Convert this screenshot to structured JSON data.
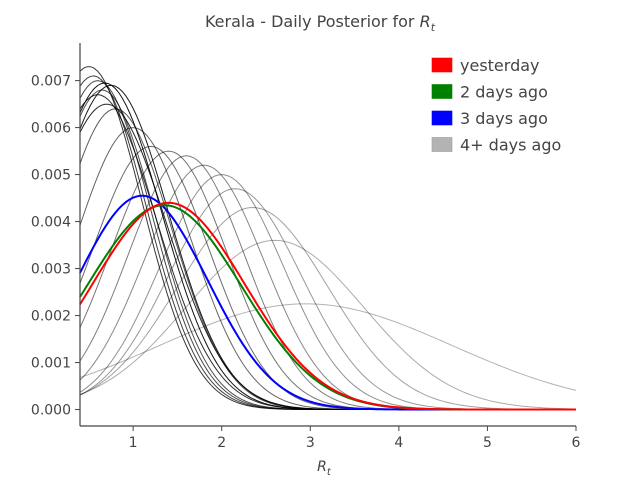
{
  "chart_data": {
    "type": "line",
    "title_text": "Kerala - Daily Posterior for ",
    "title_math": "R",
    "title_math_sub": "t",
    "xlabel_math": "R",
    "xlabel_math_sub": "t",
    "ylabel": "",
    "xlim": [
      0.4,
      6.0
    ],
    "ylim": [
      -0.00035,
      0.0078
    ],
    "grid": false,
    "legend_position": "top-right",
    "x_ticks": [
      1,
      2,
      3,
      4,
      5,
      6
    ],
    "x_tick_labels": [
      "1",
      "2",
      "3",
      "4",
      "5",
      "6"
    ],
    "y_ticks": [
      0,
      0.001,
      0.002,
      0.003,
      0.004,
      0.005,
      0.006,
      0.007
    ],
    "y_tick_labels": [
      "0.000",
      "0.001",
      "0.002",
      "0.003",
      "0.004",
      "0.005",
      "0.006",
      "0.007"
    ],
    "colors": {
      "yesterday": "#ff0000",
      "two_days": "#008000",
      "three_days": "#0000ff",
      "older": "#000000",
      "older_legend": "#b3b3b3"
    },
    "legend": [
      {
        "label": "yesterday",
        "color": "#ff0000"
      },
      {
        "label": "2 days ago",
        "color": "#008000"
      },
      {
        "label": "3 days ago",
        "color": "#0000ff"
      },
      {
        "label": "4+ days ago",
        "color": "#b3b3b3"
      }
    ],
    "series": [
      {
        "peak_x": 2.95,
        "peak_y": 0.00225,
        "sigma": 1.65,
        "group": "older"
      },
      {
        "peak_x": 2.6,
        "peak_y": 0.0036,
        "sigma": 1.0,
        "group": "older"
      },
      {
        "peak_x": 2.35,
        "peak_y": 0.0043,
        "sigma": 0.85,
        "group": "older"
      },
      {
        "peak_x": 2.15,
        "peak_y": 0.0047,
        "sigma": 0.75,
        "group": "older"
      },
      {
        "peak_x": 2.0,
        "peak_y": 0.005,
        "sigma": 0.7,
        "group": "older"
      },
      {
        "peak_x": 1.8,
        "peak_y": 0.0052,
        "sigma": 0.68,
        "group": "older"
      },
      {
        "peak_x": 1.6,
        "peak_y": 0.0054,
        "sigma": 0.66,
        "group": "older"
      },
      {
        "peak_x": 1.4,
        "peak_y": 0.0055,
        "sigma": 0.66,
        "group": "older"
      },
      {
        "peak_x": 1.2,
        "peak_y": 0.0056,
        "sigma": 0.66,
        "group": "older"
      },
      {
        "peak_x": 1.0,
        "peak_y": 0.006,
        "sigma": 0.65,
        "group": "older"
      },
      {
        "peak_x": 0.8,
        "peak_y": 0.0064,
        "sigma": 0.63,
        "group": "older"
      },
      {
        "peak_x": 0.65,
        "peak_y": 0.0068,
        "sigma": 0.6,
        "group": "older"
      },
      {
        "peak_x": 0.6,
        "peak_y": 0.007,
        "sigma": 0.6,
        "group": "older"
      },
      {
        "peak_x": 0.55,
        "peak_y": 0.0071,
        "sigma": 0.6,
        "group": "older"
      },
      {
        "peak_x": 0.5,
        "peak_y": 0.0073,
        "sigma": 0.6,
        "group": "older"
      },
      {
        "peak_x": 0.6,
        "peak_y": 0.0067,
        "sigma": 0.66,
        "group": "older"
      },
      {
        "peak_x": 0.7,
        "peak_y": 0.0065,
        "sigma": 0.68,
        "group": "older"
      },
      {
        "peak_x": 0.75,
        "peak_y": 0.0069,
        "sigma": 0.65,
        "group": "older"
      },
      {
        "peak_x": 0.68,
        "peak_y": 0.00695,
        "sigma": 0.64,
        "group": "older"
      },
      {
        "peak_x": 1.1,
        "peak_y": 0.00455,
        "sigma": 0.74,
        "group": "three_days"
      },
      {
        "peak_x": 1.35,
        "peak_y": 0.00435,
        "sigma": 0.87,
        "group": "two_days"
      },
      {
        "peak_x": 1.4,
        "peak_y": 0.0044,
        "sigma": 0.86,
        "group": "yesterday"
      }
    ]
  }
}
